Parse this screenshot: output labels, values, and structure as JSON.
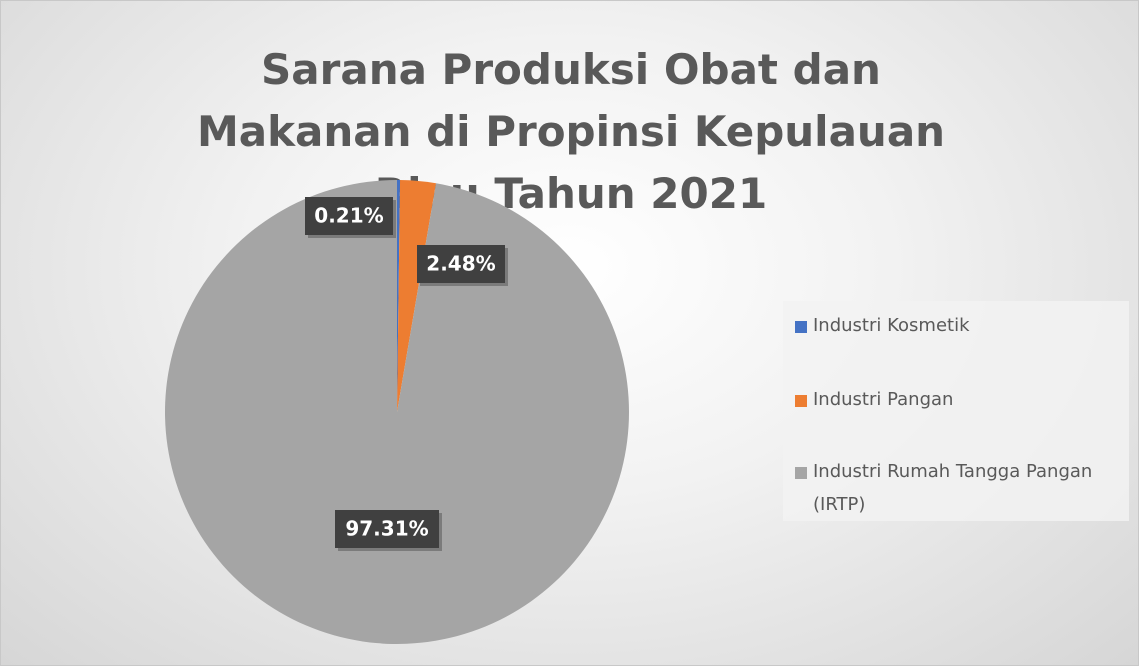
{
  "chart_data": {
    "type": "pie",
    "title": "Sarana Produksi Obat dan Makanan di Propinsi Kepulauan Riau Tahun 2021",
    "categories": [
      "Industri Kosmetik",
      "Industri Pangan",
      "Industri Rumah Tangga Pangan (IRTP)"
    ],
    "values": [
      0.21,
      2.48,
      97.31
    ],
    "value_labels": [
      "0.21%",
      "2.48%",
      "97.31%"
    ],
    "colors": [
      "#4472c4",
      "#ed7d31",
      "#a5a5a5"
    ],
    "legend": "right"
  }
}
